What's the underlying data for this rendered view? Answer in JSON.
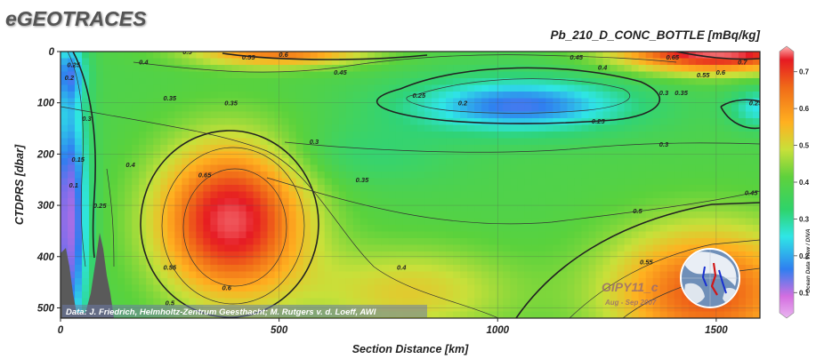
{
  "brand": "eGEOTRACES",
  "chart_data": {
    "type": "heatmap",
    "title": "Pb_210_D_CONC_BOTTLE [mBq/kg]",
    "xlabel": "Section Distance [km]",
    "ylabel": "CTDPRS [dbar]",
    "xlim": [
      0,
      1600
    ],
    "ylim": [
      520,
      0
    ],
    "x_ticks": [
      "0",
      "500",
      "1000",
      "1500"
    ],
    "y_ticks": [
      "0",
      "100",
      "200",
      "300",
      "400",
      "500"
    ],
    "colorbar": {
      "ticks": [
        "0.1",
        "0.2",
        "0.3",
        "0.4",
        "0.5",
        "0.6",
        "0.7"
      ],
      "range": [
        0.05,
        0.75
      ],
      "label": "Ocean Data View / DIVA"
    },
    "features": [
      {
        "kind": "maximum",
        "label": "0.65",
        "x_km": 390,
        "depth_dbar": 330,
        "value": 0.68
      },
      {
        "kind": "minimum",
        "label": "0.2",
        "x_km": 1050,
        "depth_dbar": 100,
        "value": 0.18
      },
      {
        "kind": "maximum",
        "label": "0.6",
        "x_km": 1450,
        "depth_dbar": 480,
        "value": 0.62
      },
      {
        "kind": "minimum",
        "label": "0.1",
        "x_km": 15,
        "depth_dbar": 330,
        "value": 0.1
      },
      {
        "kind": "maximum",
        "label": "0.7",
        "x_km": 1500,
        "depth_dbar": 10,
        "value": 0.72
      }
    ],
    "contour_labels": [
      {
        "text": "0.25",
        "x_km": 30,
        "depth_dbar": 25
      },
      {
        "text": "0.2",
        "x_km": 20,
        "depth_dbar": 50
      },
      {
        "text": "0.3",
        "x_km": 60,
        "depth_dbar": 130
      },
      {
        "text": "0.4",
        "x_km": 190,
        "depth_dbar": 20
      },
      {
        "text": "0.35",
        "x_km": 250,
        "depth_dbar": 90
      },
      {
        "text": "0.5",
        "x_km": 290,
        "depth_dbar": 0
      },
      {
        "text": "0.55",
        "x_km": 430,
        "depth_dbar": 10
      },
      {
        "text": "0.6",
        "x_km": 510,
        "depth_dbar": 5
      },
      {
        "text": "0.45",
        "x_km": 640,
        "depth_dbar": 40
      },
      {
        "text": "0.35",
        "x_km": 390,
        "depth_dbar": 100
      },
      {
        "text": "0.3",
        "x_km": 580,
        "depth_dbar": 175
      },
      {
        "text": "0.25",
        "x_km": 820,
        "depth_dbar": 85
      },
      {
        "text": "0.2",
        "x_km": 920,
        "depth_dbar": 100
      },
      {
        "text": "0.25",
        "x_km": 1230,
        "depth_dbar": 135
      },
      {
        "text": "0.3",
        "x_km": 1380,
        "depth_dbar": 180
      },
      {
        "text": "0.45",
        "x_km": 1180,
        "depth_dbar": 10
      },
      {
        "text": "0.4",
        "x_km": 1240,
        "depth_dbar": 30
      },
      {
        "text": "0.3",
        "x_km": 1380,
        "depth_dbar": 80
      },
      {
        "text": "0.35",
        "x_km": 1420,
        "depth_dbar": 80
      },
      {
        "text": "0.65",
        "x_km": 1400,
        "depth_dbar": 10
      },
      {
        "text": "0.55",
        "x_km": 1470,
        "depth_dbar": 45
      },
      {
        "text": "0.6",
        "x_km": 1510,
        "depth_dbar": 40
      },
      {
        "text": "0.7",
        "x_km": 1560,
        "depth_dbar": 20
      },
      {
        "text": "0.25",
        "x_km": 1590,
        "depth_dbar": 100
      },
      {
        "text": "0.45",
        "x_km": 1580,
        "depth_dbar": 275
      },
      {
        "text": "0.4",
        "x_km": 160,
        "depth_dbar": 220
      },
      {
        "text": "0.25",
        "x_km": 90,
        "depth_dbar": 300
      },
      {
        "text": "0.15",
        "x_km": 40,
        "depth_dbar": 210
      },
      {
        "text": "0.1",
        "x_km": 30,
        "depth_dbar": 260
      },
      {
        "text": "0.65",
        "x_km": 330,
        "depth_dbar": 240
      },
      {
        "text": "0.55",
        "x_km": 250,
        "depth_dbar": 420
      },
      {
        "text": "0.5",
        "x_km": 250,
        "depth_dbar": 490
      },
      {
        "text": "0.6",
        "x_km": 380,
        "depth_dbar": 460
      },
      {
        "text": "0.35",
        "x_km": 690,
        "depth_dbar": 250
      },
      {
        "text": "0.4",
        "x_km": 780,
        "depth_dbar": 420
      },
      {
        "text": "0.5",
        "x_km": 1320,
        "depth_dbar": 310
      },
      {
        "text": "0.55",
        "x_km": 1340,
        "depth_dbar": 410
      },
      {
        "text": "0.6",
        "x_km": 1440,
        "depth_dbar": 455
      }
    ],
    "credit": "Data: J. Friedrich, Helmholtz-Zentrum Geesthacht; M. Rutgers v. d. Loeff, AWI",
    "cruise": "GIPY11_c",
    "cruise_date": "Aug - Sep 2007",
    "colors": {
      "bottom": "#5a5a5a",
      "panel_bg": "#ffffff"
    }
  }
}
